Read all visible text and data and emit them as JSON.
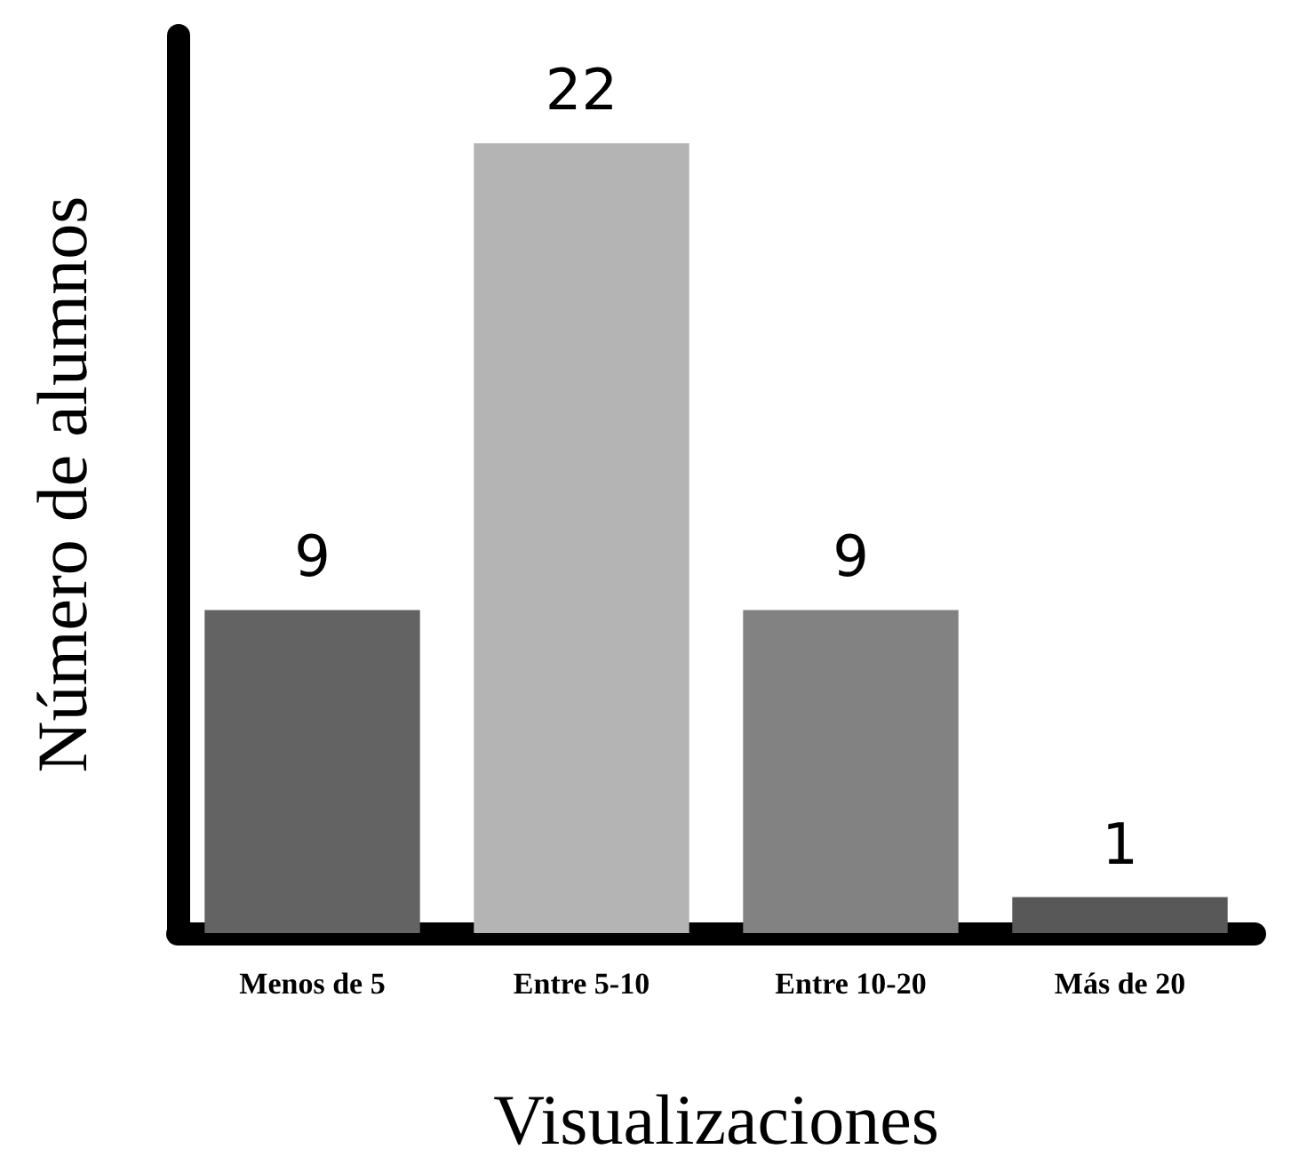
{
  "chart_data": {
    "type": "bar",
    "xlabel": "Visualizaciones",
    "ylabel": "Número de alumnos",
    "categories": [
      "Menos de 5",
      "Entre 5-10",
      "Entre 10-20",
      "Más de 20"
    ],
    "values": [
      9,
      22,
      9,
      1
    ],
    "colors": [
      "#636363",
      "#b4b4b4",
      "#828282",
      "#585858"
    ],
    "ylim": [
      0,
      25
    ],
    "tick_labels": "x",
    "data_labels": true
  }
}
